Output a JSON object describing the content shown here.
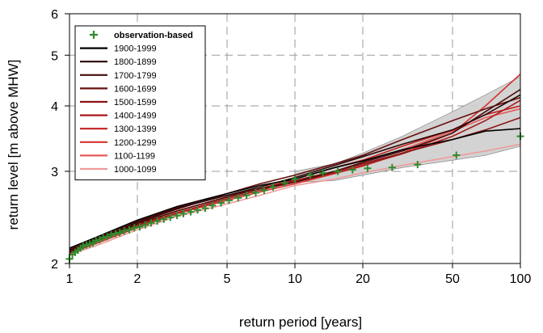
{
  "chart_data": {
    "type": "line",
    "xlabel": "return period [years]",
    "ylabel": "return level [m above MHW]",
    "x_scale": "log",
    "y_scale": "log",
    "xlim": [
      1,
      100
    ],
    "ylim": [
      2,
      6
    ],
    "x_ticks": [
      {
        "value": 1,
        "label": "1"
      },
      {
        "value": 2,
        "label": "2"
      },
      {
        "value": 5,
        "label": "5"
      },
      {
        "value": 10,
        "label": "10"
      },
      {
        "value": 20,
        "label": "20"
      },
      {
        "value": 50,
        "label": "50"
      },
      {
        "value": 100,
        "label": "100"
      }
    ],
    "y_ticks": [
      {
        "value": 2,
        "label": "2"
      },
      {
        "value": 3,
        "label": "3"
      },
      {
        "value": 4,
        "label": "4"
      },
      {
        "value": 5,
        "label": "5"
      },
      {
        "value": 6,
        "label": "6"
      }
    ],
    "grid": true,
    "legend_position": "top-left",
    "legend": [
      {
        "label": "observation-based",
        "color": "#2e8b2e",
        "marker": "+"
      },
      {
        "label": "1900-1999",
        "color": "#000000"
      },
      {
        "label": "1800-1899",
        "color": "#2a0808"
      },
      {
        "label": "1700-1799",
        "color": "#4a0c0c"
      },
      {
        "label": "1600-1699",
        "color": "#6a1010"
      },
      {
        "label": "1500-1599",
        "color": "#8a1414"
      },
      {
        "label": "1400-1499",
        "color": "#a81a1a"
      },
      {
        "label": "1300-1399",
        "color": "#c42020"
      },
      {
        "label": "1200-1299",
        "color": "#d83030"
      },
      {
        "label": "1100-1199",
        "color": "#e55a5a"
      },
      {
        "label": "1000-1099",
        "color": "#f09a9a"
      }
    ],
    "band": {
      "color": "#cfcfcf",
      "x": [
        10,
        15,
        20,
        30,
        50,
        70,
        100
      ],
      "lower": [
        2.86,
        2.88,
        2.95,
        3.05,
        3.15,
        3.22,
        3.35
      ],
      "upper": [
        3.0,
        3.1,
        3.25,
        3.5,
        3.9,
        4.2,
        4.55
      ]
    },
    "series": [
      {
        "name": "observation-based",
        "color": "#2e8b2e",
        "marker": "+",
        "x": [
          1.0,
          1.03,
          1.06,
          1.09,
          1.12,
          1.15,
          1.19,
          1.23,
          1.27,
          1.31,
          1.36,
          1.41,
          1.47,
          1.53,
          1.6,
          1.67,
          1.75,
          1.84,
          1.94,
          2.05,
          2.17,
          2.3,
          2.45,
          2.62,
          2.8,
          3.0,
          3.2,
          3.45,
          3.7,
          4.0,
          4.3,
          4.7,
          5.1,
          5.6,
          6.1,
          6.7,
          7.3,
          8.0,
          9.0,
          10.0,
          11.7,
          13.3,
          15.5,
          18.0,
          21.0,
          27.0,
          35.0,
          52.0,
          100.0
        ],
        "y": [
          2.04,
          2.08,
          2.1,
          2.12,
          2.14,
          2.16,
          2.17,
          2.18,
          2.19,
          2.21,
          2.22,
          2.24,
          2.25,
          2.27,
          2.28,
          2.29,
          2.31,
          2.32,
          2.34,
          2.35,
          2.37,
          2.39,
          2.41,
          2.43,
          2.45,
          2.47,
          2.49,
          2.51,
          2.53,
          2.55,
          2.58,
          2.61,
          2.64,
          2.67,
          2.7,
          2.73,
          2.76,
          2.8,
          2.85,
          2.9,
          2.95,
          2.98,
          3.0,
          3.02,
          3.04,
          3.05,
          3.09,
          3.22,
          3.5
        ]
      },
      {
        "name": "1900-1999",
        "color": "#000000",
        "x": [
          1,
          1.3,
          2,
          3,
          5,
          7,
          10,
          15,
          20,
          30,
          50,
          70,
          100
        ],
        "y": [
          2.14,
          2.24,
          2.42,
          2.57,
          2.72,
          2.82,
          2.9,
          3.05,
          3.14,
          3.3,
          3.45,
          3.58,
          3.62
        ]
      },
      {
        "name": "1800-1899",
        "color": "#2a0808",
        "x": [
          1,
          1.3,
          2,
          3,
          5,
          7,
          10,
          15,
          20,
          30,
          50,
          70,
          100
        ],
        "y": [
          2.12,
          2.22,
          2.4,
          2.55,
          2.7,
          2.8,
          2.92,
          3.08,
          3.2,
          3.38,
          3.6,
          3.85,
          4.2
        ]
      },
      {
        "name": "1700-1799",
        "color": "#4a0c0c",
        "x": [
          1,
          1.3,
          2,
          3,
          5,
          7,
          10,
          15,
          20,
          30,
          50,
          70,
          100
        ],
        "y": [
          2.1,
          2.2,
          2.38,
          2.52,
          2.68,
          2.78,
          2.86,
          3.0,
          3.12,
          3.28,
          3.55,
          3.9,
          4.3
        ]
      },
      {
        "name": "1600-1699",
        "color": "#6a1010",
        "x": [
          1,
          1.3,
          2,
          3,
          5,
          7,
          10,
          15,
          20,
          30,
          50,
          70,
          100
        ],
        "y": [
          2.11,
          2.21,
          2.39,
          2.54,
          2.72,
          2.84,
          2.95,
          3.1,
          3.22,
          3.45,
          3.75,
          3.95,
          4.15
        ]
      },
      {
        "name": "1500-1599",
        "color": "#8a1414",
        "x": [
          1,
          1.3,
          2,
          3,
          5,
          7,
          10,
          15,
          20,
          30,
          50,
          70,
          100
        ],
        "y": [
          2.13,
          2.23,
          2.41,
          2.56,
          2.7,
          2.78,
          2.88,
          3.0,
          3.1,
          3.25,
          3.45,
          3.6,
          3.8
        ]
      },
      {
        "name": "1400-1499",
        "color": "#a81a1a",
        "x": [
          1,
          1.3,
          2,
          3,
          5,
          7,
          10,
          15,
          20,
          30,
          50,
          70,
          100
        ],
        "y": [
          2.1,
          2.2,
          2.36,
          2.5,
          2.66,
          2.76,
          2.86,
          2.98,
          3.08,
          3.24,
          3.5,
          3.75,
          4.1
        ]
      },
      {
        "name": "1300-1399",
        "color": "#c42020",
        "x": [
          1,
          1.3,
          2,
          3,
          5,
          7,
          10,
          15,
          20,
          30,
          50,
          70,
          100
        ],
        "y": [
          2.12,
          2.21,
          2.37,
          2.52,
          2.68,
          2.78,
          2.9,
          3.05,
          3.15,
          3.35,
          3.6,
          3.85,
          4.0
        ]
      },
      {
        "name": "1200-1299",
        "color": "#d83030",
        "x": [
          1,
          1.3,
          2,
          3,
          5,
          7,
          10,
          15,
          20,
          30,
          50,
          70,
          100
        ],
        "y": [
          2.09,
          2.18,
          2.34,
          2.49,
          2.64,
          2.74,
          2.84,
          2.97,
          3.07,
          3.25,
          3.55,
          4.0,
          4.6
        ]
      },
      {
        "name": "1100-1199",
        "color": "#e55a5a",
        "x": [
          1,
          1.3,
          2,
          3,
          5,
          7,
          10,
          15,
          20,
          30,
          50,
          70,
          100
        ],
        "y": [
          2.1,
          2.19,
          2.35,
          2.5,
          2.66,
          2.76,
          2.87,
          3.0,
          3.12,
          3.3,
          3.58,
          3.8,
          3.95
        ]
      },
      {
        "name": "1000-1099",
        "color": "#f09a9a",
        "x": [
          1,
          1.3,
          2,
          3,
          5,
          7,
          10,
          15,
          20,
          30,
          50,
          70,
          100
        ],
        "y": [
          2.08,
          2.16,
          2.32,
          2.46,
          2.6,
          2.7,
          2.82,
          2.9,
          2.98,
          3.08,
          3.2,
          3.28,
          3.38
        ]
      }
    ]
  }
}
